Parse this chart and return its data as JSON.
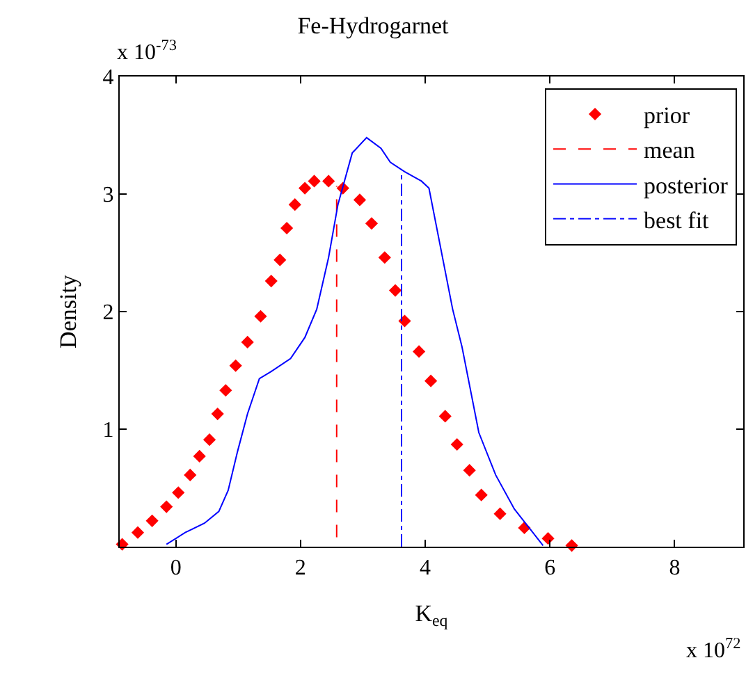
{
  "chart_data": {
    "type": "line",
    "title": "Fe-Hydrogarnet",
    "xlabel": "K$_{eq}$",
    "ylabel": "Density",
    "annotations": [
      "x 10$^{-73}$",
      "x 10$^{72}$"
    ],
    "xlim": [
      -0.9,
      9.1
    ],
    "xticks": [
      0,
      2,
      4,
      6,
      8
    ],
    "ylim": [
      0,
      4
    ],
    "yticks": [
      1,
      2,
      3,
      4
    ],
    "grid": false,
    "legend": "top right",
    "series": [
      {
        "name": "prior",
        "type": "scatter",
        "marker": "diamond",
        "color": "#ff0000",
        "x": [
          -0.86,
          -0.61,
          -0.38,
          -0.15,
          0.04,
          0.23,
          0.38,
          0.54,
          0.67,
          0.8,
          0.96,
          1.15,
          1.36,
          1.53,
          1.67,
          1.78,
          1.91,
          2.07,
          2.22,
          2.45,
          2.68,
          2.95,
          3.14,
          3.35,
          3.52,
          3.67,
          3.9,
          4.09,
          4.32,
          4.51,
          4.71,
          4.9,
          5.2,
          5.59,
          5.97,
          6.35
        ],
        "values": [
          0.02,
          0.12,
          0.22,
          0.34,
          0.46,
          0.61,
          0.77,
          0.91,
          1.13,
          1.33,
          1.54,
          1.74,
          1.96,
          2.26,
          2.44,
          2.71,
          2.91,
          3.05,
          3.11,
          3.11,
          3.05,
          2.95,
          2.75,
          2.46,
          2.18,
          1.92,
          1.66,
          1.41,
          1.11,
          0.87,
          0.65,
          0.44,
          0.28,
          0.16,
          0.07,
          0.01
        ]
      },
      {
        "name": "mean",
        "type": "line",
        "line_style": "dashed",
        "color": "#ff0000",
        "x": [
          2.58,
          2.58
        ],
        "values": [
          0.08,
          3.07
        ]
      },
      {
        "name": "posterior",
        "type": "line",
        "line_style": "solid",
        "color": "#0000ff",
        "x": [
          -0.15,
          0.15,
          0.46,
          0.69,
          0.84,
          0.99,
          1.15,
          1.34,
          1.53,
          1.84,
          2.07,
          2.26,
          2.45,
          2.6,
          2.83,
          3.06,
          3.29,
          3.44,
          3.67,
          3.94,
          4.06,
          4.44,
          4.59,
          4.86,
          5.13,
          5.43,
          5.89
        ],
        "values": [
          0.02,
          0.12,
          0.2,
          0.3,
          0.48,
          0.81,
          1.13,
          1.43,
          1.49,
          1.6,
          1.78,
          2.02,
          2.46,
          2.91,
          3.35,
          3.48,
          3.39,
          3.27,
          3.19,
          3.11,
          3.05,
          2.02,
          1.7,
          0.97,
          0.61,
          0.32,
          0.01
        ]
      },
      {
        "name": "best fit",
        "type": "line",
        "line_style": "dashdot",
        "color": "#0000ff",
        "x": [
          3.62,
          3.62
        ],
        "values": [
          0,
          3.17
        ]
      }
    ]
  }
}
